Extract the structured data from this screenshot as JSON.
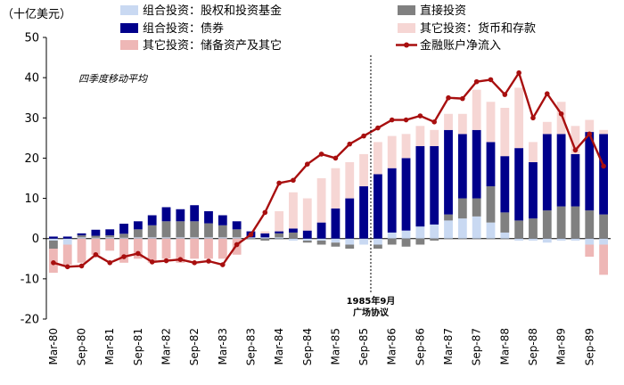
{
  "chart_data": {
    "type": "bar",
    "stacked": true,
    "unit_label": "（十亿美元）",
    "note": "四季度移动平均",
    "annotation": {
      "line1": "1985年9月",
      "line2": "广场协议",
      "at_category": "Sep-85"
    },
    "ylim": [
      -20,
      50
    ],
    "yticks": [
      -20,
      -10,
      0,
      10,
      20,
      30,
      40,
      50
    ],
    "xtick_labels": [
      "Mar-80",
      "Sep-80",
      "Mar-81",
      "Sep-81",
      "Mar-82",
      "Sep-82",
      "Mar-83",
      "Sep-83",
      "Mar-84",
      "Sep-84",
      "Mar-85",
      "Sep-85",
      "Mar-86",
      "Sep-86",
      "Mar-87",
      "Sep-87",
      "Mar-88",
      "Sep-88",
      "Mar-89",
      "Sep-89"
    ],
    "categories": [
      "Mar-80",
      "Jun-80",
      "Sep-80",
      "Dec-80",
      "Mar-81",
      "Jun-81",
      "Sep-81",
      "Dec-81",
      "Mar-82",
      "Jun-82",
      "Sep-82",
      "Dec-82",
      "Mar-83",
      "Jun-83",
      "Sep-83",
      "Dec-83",
      "Mar-84",
      "Jun-84",
      "Sep-84",
      "Dec-84",
      "Mar-85",
      "Jun-85",
      "Sep-85",
      "Dec-85",
      "Mar-86",
      "Jun-86",
      "Sep-86",
      "Dec-86",
      "Mar-87",
      "Jun-87",
      "Sep-87",
      "Dec-87",
      "Mar-88",
      "Jun-88",
      "Sep-88",
      "Dec-88",
      "Mar-89",
      "Jun-89",
      "Sep-89",
      "Dec-89"
    ],
    "series": [
      {
        "name": "组合投资：股权和投资基金",
        "kind": "bar",
        "color": "#c9d9f2",
        "values": [
          -0.5,
          -1.5,
          0.3,
          0.2,
          0.3,
          0.2,
          0.3,
          0.3,
          0.3,
          0.3,
          0.3,
          0.3,
          0.3,
          0.3,
          0.3,
          0.3,
          0.3,
          -0.5,
          -0.5,
          -0.5,
          -1,
          -1.5,
          -1.5,
          -1.5,
          1.5,
          2,
          3,
          3.5,
          4.5,
          5,
          5.5,
          4,
          1.5,
          -0.5,
          -0.5,
          -1,
          -0.5,
          -0.5,
          -1.5,
          -1.5
        ]
      },
      {
        "name": "直接投资",
        "kind": "bar",
        "color": "#808080",
        "values": [
          -2,
          0,
          0.5,
          0.5,
          0.5,
          1,
          2,
          3,
          4,
          4,
          4,
          3.5,
          3,
          2,
          0,
          -0.5,
          1,
          1.5,
          -0.5,
          -1,
          -1,
          -1,
          0,
          -1,
          -1.5,
          -2,
          -1.5,
          -0.5,
          1.5,
          5,
          4.5,
          9,
          5,
          4.5,
          5,
          7,
          8,
          8,
          7,
          6
        ]
      },
      {
        "name": "组合投资：债券",
        "kind": "bar",
        "color": "#00008b",
        "values": [
          0.5,
          0.5,
          0.5,
          1.5,
          1.5,
          2.5,
          2,
          2.5,
          3.5,
          3,
          4,
          3,
          2.5,
          2,
          1.5,
          1,
          0.5,
          1,
          2,
          4,
          7.5,
          10,
          13,
          16,
          16,
          18,
          20,
          19.5,
          21,
          16,
          17,
          11,
          14,
          18,
          14,
          19,
          18,
          13,
          19.5,
          20
        ]
      },
      {
        "name": "其它投资：货币和存款",
        "kind": "bar",
        "color": "#f6d6d4",
        "values": [
          0,
          0,
          0,
          0,
          0,
          0,
          0,
          0,
          0,
          0,
          0,
          0,
          0,
          0,
          0,
          0.5,
          5,
          9,
          8,
          11,
          10,
          9,
          8,
          8,
          8,
          6,
          5,
          4,
          4,
          5,
          10,
          10,
          12,
          15,
          5,
          3,
          8,
          7,
          3,
          1
        ]
      },
      {
        "name": "其它投资：储备资产及其它",
        "kind": "bar",
        "color": "#eeb7b6",
        "values": [
          -6,
          -5,
          -6,
          -4,
          -3,
          -6,
          -5,
          -6,
          -5,
          -6,
          -5,
          -5,
          -5,
          -4,
          0,
          0,
          0,
          0,
          0,
          0,
          0,
          0,
          0,
          0,
          0,
          0,
          0,
          0,
          0,
          0,
          0,
          0,
          0,
          0,
          0,
          0,
          0,
          0,
          -3,
          -7.5
        ]
      },
      {
        "name": "金融账户净流入",
        "kind": "line",
        "color": "#a80f0f",
        "values": [
          -6,
          -7,
          -6.8,
          -4,
          -6,
          -4.5,
          -3.7,
          -5.8,
          -5.5,
          -5.2,
          -6,
          -5.6,
          -6.5,
          -1.5,
          1,
          6.5,
          13.8,
          14.5,
          18.5,
          21,
          20,
          23.5,
          25.5,
          27.5,
          29.5,
          29.5,
          30.5,
          29,
          35,
          34.8,
          39,
          39.5,
          35.8,
          41.2,
          30,
          36,
          31,
          22,
          26,
          18
        ]
      }
    ],
    "legend": {
      "rows": [
        [
          "组合投资：股权和投资基金",
          "直接投资"
        ],
        [
          "组合投资：债券",
          "其它投资：货币和存款"
        ],
        [
          "其它投资：储备资产及其它",
          "金融账户净流入"
        ]
      ]
    }
  }
}
